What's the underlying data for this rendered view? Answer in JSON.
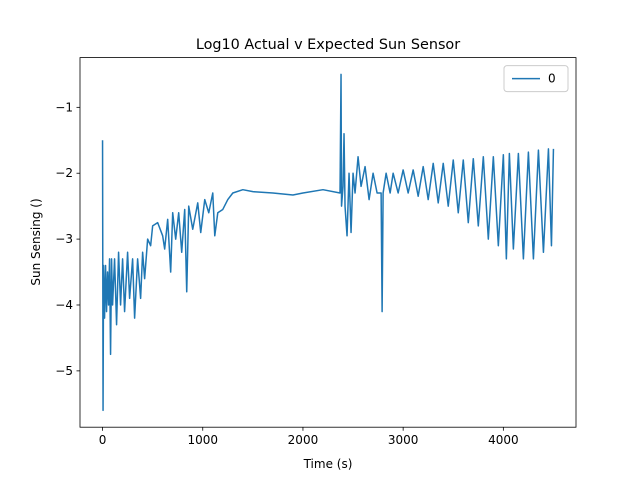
{
  "chart_data": {
    "type": "line",
    "title": "Log10 Actual v Expected Sun Sensor",
    "xlabel": "Time (s)",
    "ylabel": "Sun Sensing ()",
    "x": [
      0,
      5,
      10,
      20,
      30,
      40,
      50,
      60,
      70,
      80,
      90,
      100,
      120,
      140,
      160,
      180,
      200,
      220,
      250,
      270,
      300,
      320,
      350,
      380,
      400,
      420,
      450,
      480,
      500,
      550,
      600,
      620,
      650,
      680,
      700,
      730,
      760,
      790,
      820,
      840,
      860,
      900,
      950,
      980,
      1020,
      1060,
      1100,
      1120,
      1150,
      1200,
      1250,
      1300,
      1400,
      1500,
      1700,
      1900,
      2000,
      2200,
      2370,
      2380,
      2385,
      2400,
      2410,
      2420,
      2440,
      2460,
      2480,
      2500,
      2520,
      2550,
      2580,
      2620,
      2660,
      2700,
      2740,
      2780,
      2790,
      2800,
      2830,
      2870,
      2900,
      2950,
      3000,
      3050,
      3100,
      3150,
      3200,
      3250,
      3300,
      3350,
      3400,
      3450,
      3500,
      3550,
      3600,
      3650,
      3700,
      3750,
      3800,
      3850,
      3900,
      3950,
      4000,
      4030,
      4060,
      4100,
      4150,
      4200,
      4250,
      4300,
      4350,
      4400,
      4450,
      4480,
      4500
    ],
    "series": [
      {
        "name": "0",
        "color": "#1f77b4",
        "values": [
          -1.5,
          -5.6,
          -3.4,
          -4.2,
          -3.4,
          -4.1,
          -3.5,
          -4.0,
          -3.3,
          -4.75,
          -3.3,
          -4.0,
          -3.3,
          -4.3,
          -3.2,
          -4.0,
          -3.3,
          -4.1,
          -3.2,
          -3.9,
          -3.3,
          -4.2,
          -3.3,
          -3.9,
          -3.2,
          -3.6,
          -3.0,
          -3.1,
          -2.8,
          -2.75,
          -2.95,
          -3.15,
          -2.7,
          -3.5,
          -2.6,
          -3.0,
          -2.6,
          -3.2,
          -2.55,
          -3.8,
          -2.5,
          -2.85,
          -2.45,
          -2.9,
          -2.4,
          -2.6,
          -2.3,
          -2.95,
          -2.6,
          -2.55,
          -2.4,
          -2.3,
          -2.25,
          -2.28,
          -2.3,
          -2.33,
          -2.3,
          -2.25,
          -2.3,
          -0.5,
          -2.5,
          -2.2,
          -1.4,
          -2.5,
          -2.95,
          -2.0,
          -2.9,
          -2.0,
          -2.3,
          -1.75,
          -2.2,
          -1.9,
          -2.4,
          -2.0,
          -2.3,
          -2.3,
          -4.1,
          -2.3,
          -2.0,
          -2.3,
          -2.0,
          -2.3,
          -1.95,
          -2.3,
          -1.95,
          -2.35,
          -1.9,
          -2.4,
          -1.85,
          -2.45,
          -1.85,
          -2.5,
          -1.8,
          -2.6,
          -1.8,
          -2.75,
          -1.78,
          -2.8,
          -1.75,
          -3.0,
          -1.75,
          -3.1,
          -1.72,
          -3.3,
          -1.7,
          -3.15,
          -1.7,
          -3.3,
          -1.68,
          -3.3,
          -1.65,
          -3.2,
          -1.63,
          -3.1,
          -1.63
        ]
      }
    ],
    "xlim": [
      -225,
      4725
    ],
    "xticks": [
      0,
      1000,
      2000,
      3000,
      4000
    ],
    "ylim": [
      -5.855,
      -0.245
    ],
    "yticks": [
      {
        "value": -5,
        "label": "−5"
      },
      {
        "value": -4,
        "label": "−4"
      },
      {
        "value": -3,
        "label": "−3"
      },
      {
        "value": -2,
        "label": "−2"
      },
      {
        "value": -1,
        "label": "−1"
      }
    ],
    "legend": "upper right"
  }
}
